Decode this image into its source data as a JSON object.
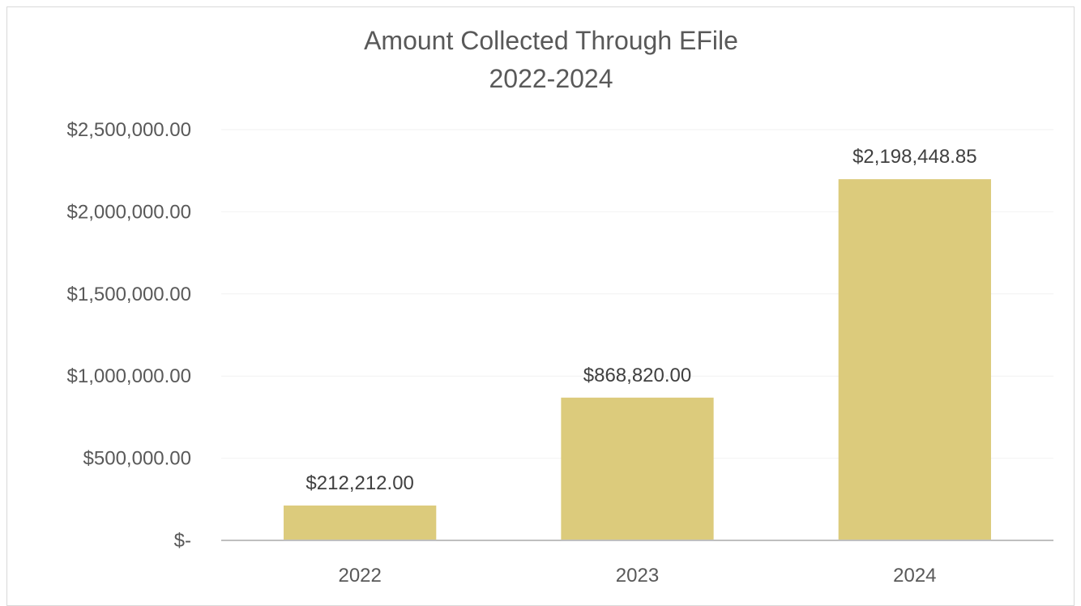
{
  "chart_data": {
    "type": "bar",
    "title_line1": "Amount Collected Through EFile",
    "title_line2": "2022-2024",
    "categories": [
      "2022",
      "2023",
      "2024"
    ],
    "values": [
      212212.0,
      868820.0,
      2198448.85
    ],
    "data_labels": [
      "$212,212.00",
      "$868,820.00",
      "$2,198,448.85"
    ],
    "y_ticks": [
      0,
      500000,
      1000000,
      1500000,
      2000000,
      2500000
    ],
    "y_tick_labels": [
      "$-",
      "$500,000.00",
      "$1,000,000.00",
      "$1,500,000.00",
      "$2,000,000.00",
      "$2,500,000.00"
    ],
    "ylim": [
      0,
      2500000
    ],
    "xlabel": "",
    "ylabel": "",
    "grid": true,
    "legend": "none",
    "bar_color": "#dccb7c",
    "gridline_color": "#f2f2f2",
    "axis_color": "#bfbfbf"
  }
}
